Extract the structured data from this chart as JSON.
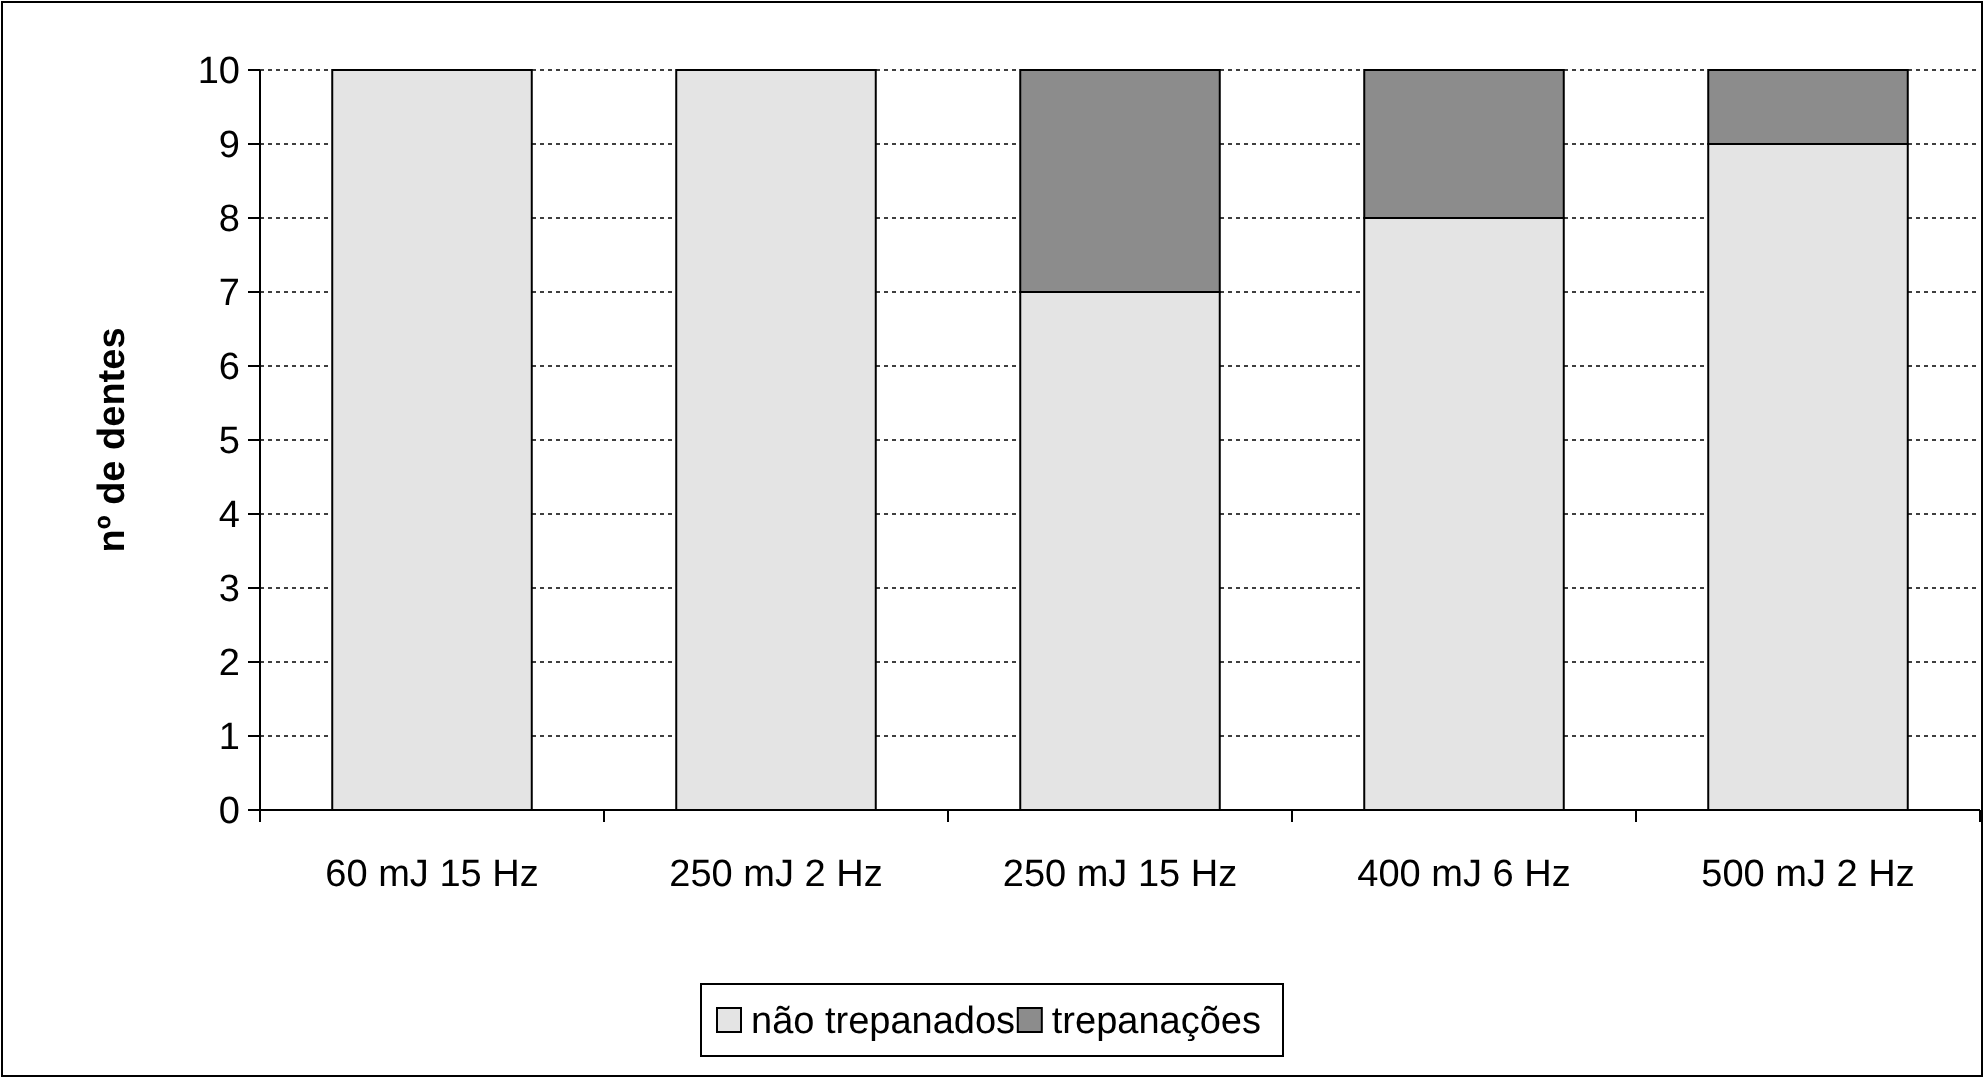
{
  "chart_data": {
    "type": "bar",
    "stacked": true,
    "ylabel": "nº de dentes",
    "categories": [
      "60 mJ 15 Hz",
      "250 mJ 2 Hz",
      "250 mJ 15 Hz",
      "400 mJ 6 Hz",
      "500 mJ 2 Hz"
    ],
    "series": [
      {
        "name": "não trepanados",
        "color": "#e4e4e4",
        "values": [
          10,
          10,
          7,
          8,
          9
        ]
      },
      {
        "name": "trepanações",
        "color": "#8c8c8c",
        "values": [
          0,
          0,
          3,
          2,
          1
        ]
      }
    ],
    "ylim": [
      0,
      10
    ],
    "yticks": [
      0,
      1,
      2,
      3,
      4,
      5,
      6,
      7,
      8,
      9,
      10
    ],
    "grid": "y",
    "legend": "bottom"
  }
}
